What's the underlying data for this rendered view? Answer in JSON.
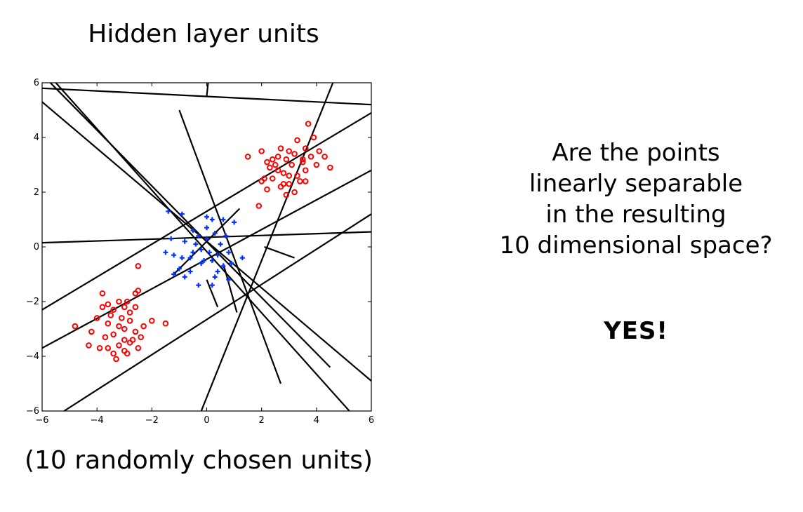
{
  "slide": {
    "title": "Hidden layer units",
    "caption": "(10 randomly chosen units)",
    "question_lines": [
      "Are the points",
      "linearly separable",
      "in the resulting",
      "10 dimensional space?"
    ],
    "answer": "YES!"
  },
  "colors": {
    "red_class": "#ff0000",
    "blue_class": "#0033ff",
    "line": "#000000"
  },
  "chart_data": {
    "type": "scatter",
    "xlim": [
      -6,
      6
    ],
    "ylim": [
      -6,
      6
    ],
    "x_ticks": [
      -6,
      -4,
      -2,
      0,
      2,
      4,
      6
    ],
    "y_ticks": [
      -6,
      -4,
      -2,
      0,
      2,
      4,
      6
    ],
    "x_tick_labels": [
      "−6",
      "−4",
      "−2",
      "0",
      "2",
      "4",
      "6"
    ],
    "y_tick_labels": [
      "−6",
      "−4",
      "−2",
      "0",
      "2",
      "4",
      "6"
    ],
    "grid": false,
    "series": [
      {
        "marker": "circle",
        "color": "#ff0000",
        "points": [
          [
            1.5,
            3.3
          ],
          [
            2.0,
            3.5
          ],
          [
            2.2,
            3.1
          ],
          [
            2.3,
            2.9
          ],
          [
            2.5,
            3.0
          ],
          [
            2.6,
            3.3
          ],
          [
            2.7,
            3.6
          ],
          [
            2.9,
            3.2
          ],
          [
            3.0,
            3.5
          ],
          [
            3.2,
            3.4
          ],
          [
            3.3,
            3.9
          ],
          [
            3.5,
            3.1
          ],
          [
            3.6,
            3.6
          ],
          [
            3.7,
            4.5
          ],
          [
            3.9,
            4.0
          ],
          [
            4.0,
            3.0
          ],
          [
            4.1,
            3.5
          ],
          [
            4.3,
            3.3
          ],
          [
            4.5,
            2.9
          ],
          [
            2.0,
            2.4
          ],
          [
            2.2,
            2.1
          ],
          [
            2.4,
            2.5
          ],
          [
            2.6,
            2.8
          ],
          [
            2.8,
            2.3
          ],
          [
            3.0,
            2.6
          ],
          [
            3.2,
            2.0
          ],
          [
            3.4,
            2.4
          ],
          [
            3.6,
            2.8
          ],
          [
            3.8,
            3.3
          ],
          [
            2.1,
            2.5
          ],
          [
            1.9,
            1.5
          ],
          [
            2.9,
            1.9
          ],
          [
            3.1,
            3.0
          ],
          [
            3.3,
            2.6
          ],
          [
            2.7,
            2.2
          ],
          [
            3.5,
            3.2
          ],
          [
            2.4,
            3.2
          ],
          [
            3.0,
            2.3
          ],
          [
            2.8,
            2.7
          ],
          [
            3.6,
            2.4
          ],
          [
            -2.5,
            -0.7
          ],
          [
            -2.5,
            -1.6
          ],
          [
            -2.6,
            -1.7
          ],
          [
            -3.8,
            -1.7
          ],
          [
            -3.6,
            -2.1
          ],
          [
            -3.2,
            -2.0
          ],
          [
            -3.0,
            -2.2
          ],
          [
            -2.8,
            -2.4
          ],
          [
            -3.4,
            -2.3
          ],
          [
            -2.9,
            -2.0
          ],
          [
            -4.0,
            -2.6
          ],
          [
            -3.6,
            -2.8
          ],
          [
            -3.2,
            -2.9
          ],
          [
            -2.8,
            -2.7
          ],
          [
            -2.6,
            -3.1
          ],
          [
            -2.3,
            -2.9
          ],
          [
            -3.0,
            -3.0
          ],
          [
            -4.8,
            -2.9
          ],
          [
            -4.2,
            -3.1
          ],
          [
            -3.4,
            -3.2
          ],
          [
            -3.0,
            -3.4
          ],
          [
            -2.8,
            -3.5
          ],
          [
            -2.5,
            -3.7
          ],
          [
            -3.2,
            -3.6
          ],
          [
            -3.6,
            -3.7
          ],
          [
            -3.9,
            -3.7
          ],
          [
            -3.4,
            -3.9
          ],
          [
            -3.0,
            -3.8
          ],
          [
            -3.3,
            -4.1
          ],
          [
            -4.3,
            -3.6
          ],
          [
            -2.0,
            -2.7
          ],
          [
            -1.5,
            -2.8
          ],
          [
            -3.5,
            -2.5
          ],
          [
            -2.7,
            -3.4
          ],
          [
            -3.1,
            -2.6
          ],
          [
            -2.9,
            -3.9
          ],
          [
            -3.7,
            -3.3
          ],
          [
            -2.4,
            -3.3
          ],
          [
            -3.8,
            -2.2
          ],
          [
            -2.6,
            -2.2
          ]
        ]
      },
      {
        "marker": "plus",
        "color": "#0033ff",
        "points": [
          [
            -1.4,
            1.3
          ],
          [
            -0.9,
            1.2
          ],
          [
            -0.5,
            0.6
          ],
          [
            0.0,
            1.1
          ],
          [
            0.2,
            1.0
          ],
          [
            0.6,
            1.0
          ],
          [
            1.0,
            0.9
          ],
          [
            -1.3,
            0.3
          ],
          [
            -0.8,
            0.2
          ],
          [
            -0.4,
            0.1
          ],
          [
            0.0,
            0.3
          ],
          [
            0.3,
            0.5
          ],
          [
            0.7,
            0.4
          ],
          [
            -1.5,
            -0.2
          ],
          [
            -1.2,
            -0.3
          ],
          [
            -0.9,
            -0.4
          ],
          [
            -0.5,
            -0.2
          ],
          [
            -0.2,
            -0.1
          ],
          [
            0.1,
            -0.2
          ],
          [
            0.4,
            -0.3
          ],
          [
            0.8,
            -0.2
          ],
          [
            1.3,
            -0.4
          ],
          [
            -1.0,
            -0.8
          ],
          [
            -0.6,
            -0.9
          ],
          [
            -0.2,
            -0.6
          ],
          [
            0.2,
            -0.5
          ],
          [
            0.6,
            -0.7
          ],
          [
            0.9,
            -0.6
          ],
          [
            -0.3,
            -1.4
          ],
          [
            0.2,
            -1.4
          ],
          [
            -0.8,
            -1.1
          ],
          [
            -1.2,
            -1.0
          ],
          [
            0.4,
            -0.9
          ],
          [
            -0.1,
            -0.5
          ],
          [
            0.5,
            0.1
          ],
          [
            0.0,
            0.7
          ],
          [
            -0.3,
            0.4
          ],
          [
            0.3,
            -1.1
          ],
          [
            0.8,
            -1.2
          ],
          [
            -0.6,
            -0.4
          ]
        ]
      }
    ],
    "segments": [
      [
        [
          -6,
          5.8
        ],
        [
          6,
          5.2
        ]
      ],
      [
        [
          0,
          5.5
        ],
        [
          0.05,
          6.0
        ]
      ],
      [
        [
          -5.5,
          6.0
        ],
        [
          5.2,
          -6.0
        ]
      ],
      [
        [
          -5.7,
          6.0
        ],
        [
          4.5,
          -4.4
        ]
      ],
      [
        [
          -6,
          5.3
        ],
        [
          6,
          -4.9
        ]
      ],
      [
        [
          -1.0,
          5.0
        ],
        [
          2.7,
          -5.0
        ]
      ],
      [
        [
          -0.2,
          -6.0
        ],
        [
          4.6,
          6.0
        ]
      ],
      [
        [
          -6,
          -2.3
        ],
        [
          6,
          4.9
        ]
      ],
      [
        [
          -6,
          -3.7
        ],
        [
          6,
          2.8
        ]
      ],
      [
        [
          -5.2,
          -6.0
        ],
        [
          6,
          1.2
        ]
      ],
      [
        [
          -6,
          0.15
        ],
        [
          6,
          0.55
        ]
      ],
      [
        [
          -1.2,
          -1.0
        ],
        [
          1.2,
          1.4
        ]
      ],
      [
        [
          0.0,
          -1.2
        ],
        [
          0.4,
          -2.2
        ]
      ],
      [
        [
          0.6,
          -0.6
        ],
        [
          1.1,
          -2.4
        ]
      ],
      [
        [
          2.1,
          0.0
        ],
        [
          3.2,
          -0.4
        ]
      ]
    ]
  }
}
